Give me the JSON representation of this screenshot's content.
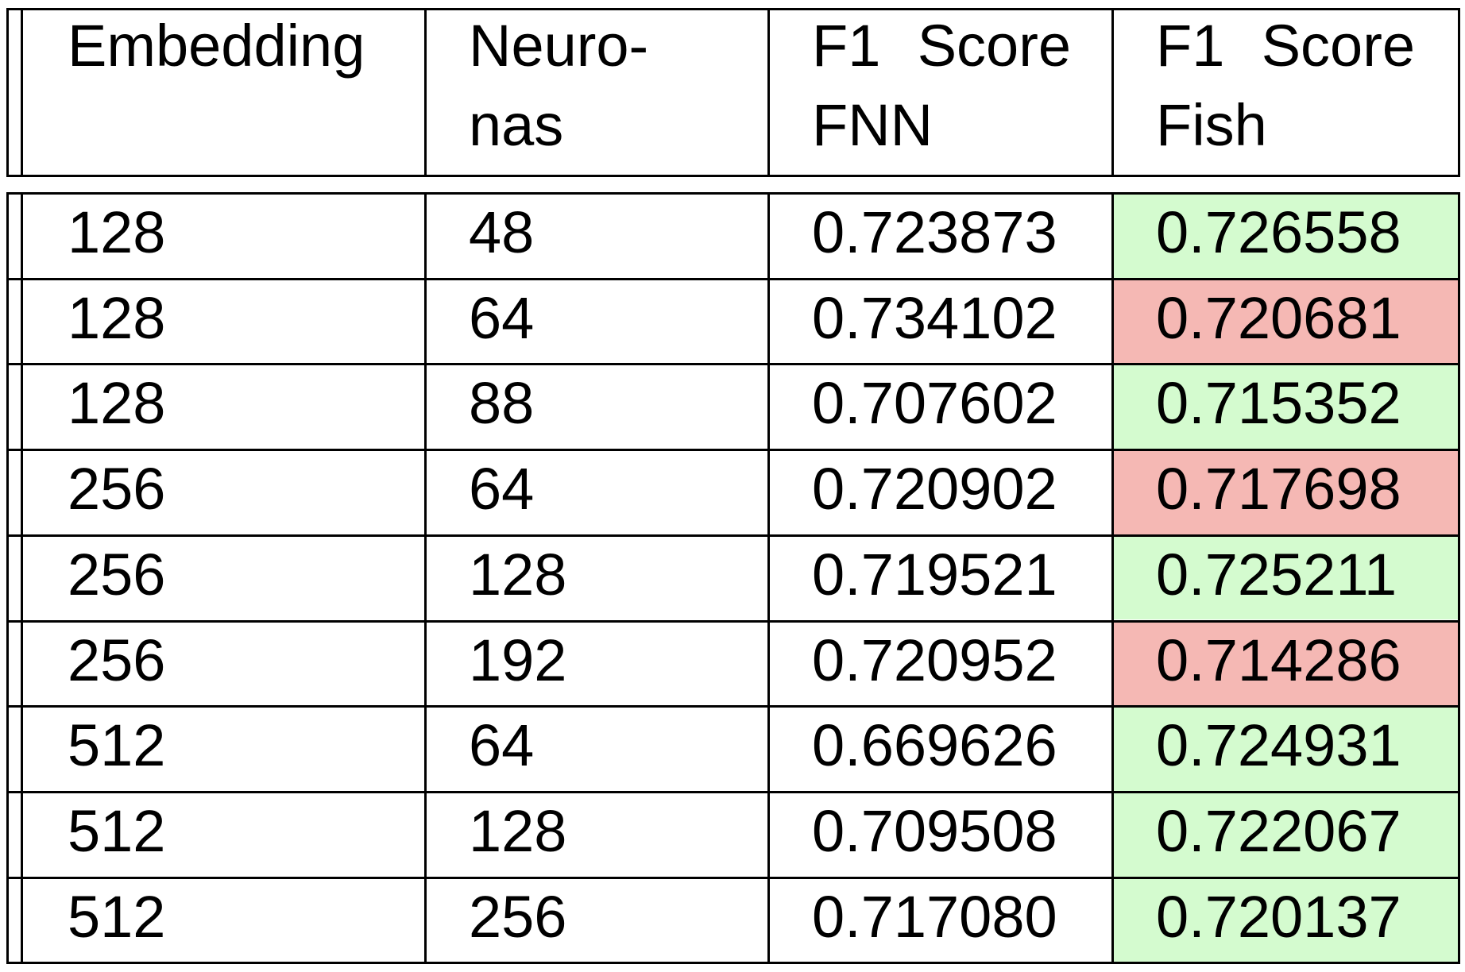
{
  "chart_data": {
    "type": "table",
    "columns": [
      {
        "label_lines": [
          "Embedding"
        ]
      },
      {
        "label_lines": [
          "Neuro-",
          "nas"
        ]
      },
      {
        "label_lines": [
          "F1 Score",
          "FNN"
        ]
      },
      {
        "label_lines": [
          "F1 Score",
          "Fish"
        ]
      }
    ],
    "header_words": {
      "c0": [
        "Embedding"
      ],
      "c1_l1": "Neuro-",
      "c1_l2": "nas",
      "c2_l1": [
        "F1",
        "Score"
      ],
      "c2_l2": "FNN",
      "c3_l1": [
        "F1",
        "Score"
      ],
      "c3_l2": "Fish"
    },
    "rows": [
      {
        "embedding": "128",
        "neurons": "48",
        "f1_fnn": "0.723873",
        "f1_fish": "0.726558",
        "highlight": "better"
      },
      {
        "embedding": "128",
        "neurons": "64",
        "f1_fnn": "0.734102",
        "f1_fish": "0.720681",
        "highlight": "worse"
      },
      {
        "embedding": "128",
        "neurons": "88",
        "f1_fnn": "0.707602",
        "f1_fish": "0.715352",
        "highlight": "better"
      },
      {
        "embedding": "256",
        "neurons": "64",
        "f1_fnn": "0.720902",
        "f1_fish": "0.717698",
        "highlight": "worse"
      },
      {
        "embedding": "256",
        "neurons": "128",
        "f1_fnn": "0.719521",
        "f1_fish": "0.725211",
        "highlight": "better"
      },
      {
        "embedding": "256",
        "neurons": "192",
        "f1_fnn": "0.720952",
        "f1_fish": "0.714286",
        "highlight": "worse"
      },
      {
        "embedding": "512",
        "neurons": "64",
        "f1_fnn": "0.669626",
        "f1_fish": "0.724931",
        "highlight": "better"
      },
      {
        "embedding": "512",
        "neurons": "128",
        "f1_fnn": "0.709508",
        "f1_fish": "0.722067",
        "highlight": "better"
      },
      {
        "embedding": "512",
        "neurons": "256",
        "f1_fnn": "0.717080",
        "f1_fish": "0.720137",
        "highlight": "better"
      }
    ],
    "colors": {
      "better": "#d4fbcf",
      "worse": "#f5b8b4",
      "border": "#000000"
    }
  }
}
